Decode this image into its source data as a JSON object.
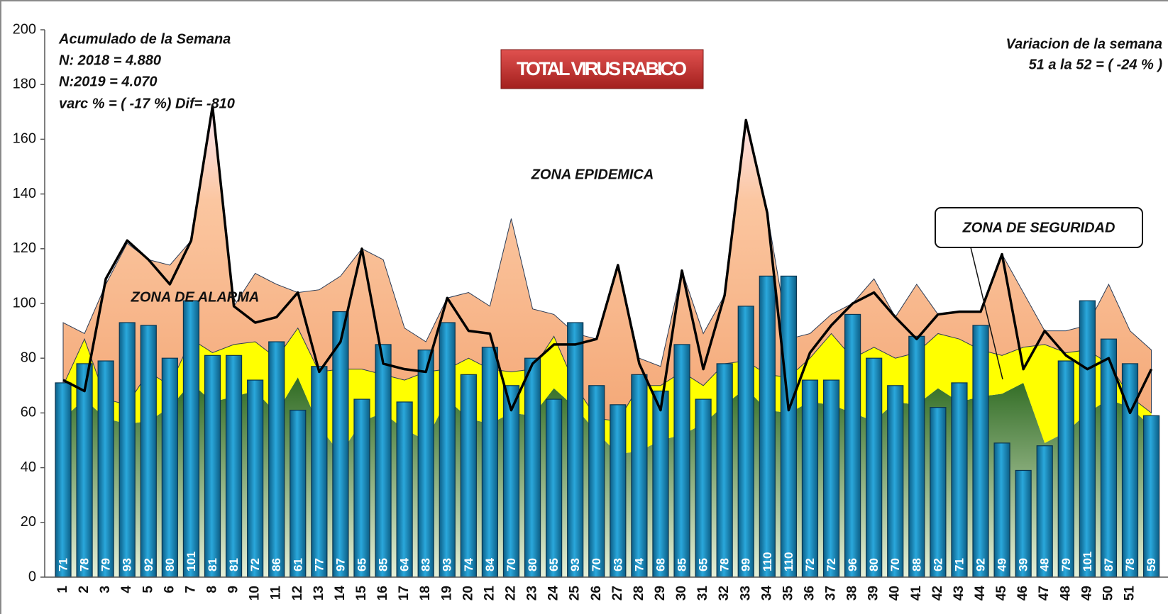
{
  "chart_data": {
    "type": "bar_line_area",
    "title": "TOTAL VIRUS RABICO",
    "annotations": [
      "Acumulado  de la  Semana",
      "N: 2018 = 4.880",
      "N:2019 = 4.070",
      "varc % = ( -17 %) Dif= -810",
      "Variacion de la semana",
      "51  a la  52  = ( -24 % )",
      "ZONA  EPIDEMICA",
      "ZONA  DE ALARMA",
      "ZONA  DE SEGURIDAD"
    ],
    "categories": [
      "1",
      "2",
      "3",
      "4",
      "5",
      "6",
      "7",
      "8",
      "9",
      "10",
      "11",
      "12",
      "13",
      "14",
      "15",
      "16",
      "17",
      "18",
      "19",
      "20",
      "21",
      "22",
      "23",
      "24",
      "25",
      "26",
      "27",
      "28",
      "29",
      "30",
      "31",
      "32",
      "33",
      "34",
      "35",
      "36",
      "37",
      "38",
      "39",
      "40",
      "41",
      "42",
      "43",
      "44",
      "45",
      "46",
      "47",
      "48",
      "49",
      "50",
      "51",
      null
    ],
    "areas": [
      {
        "color": "#3d7a2a",
        "values": [
          58,
          65,
          58,
          56,
          57,
          62,
          71,
          64,
          66,
          68,
          60,
          73,
          55,
          45,
          57,
          60,
          54,
          50,
          65,
          58,
          56,
          60,
          59,
          69,
          62,
          53,
          45,
          46,
          50,
          52,
          56,
          63,
          69,
          61,
          60,
          64,
          63,
          60,
          57,
          64,
          63,
          69,
          64,
          66,
          67,
          71,
          49,
          53,
          60,
          65,
          62,
          55
        ]
      },
      {
        "color": "#ffff00",
        "values": [
          12,
          22,
          7,
          7,
          18,
          8,
          16,
          18,
          19,
          18,
          20,
          18,
          20,
          31,
          19,
          14,
          18,
          25,
          11,
          22,
          20,
          15,
          17,
          19,
          8,
          5,
          12,
          24,
          20,
          23,
          14,
          15,
          10,
          13,
          13,
          16,
          26,
          20,
          27,
          16,
          19,
          20,
          23,
          17,
          14,
          13,
          36,
          29,
          23,
          13,
          4,
          5
        ]
      },
      {
        "color": "#f7b27a",
        "values": [
          23,
          2,
          42,
          59,
          41,
          44,
          36,
          90,
          14,
          25,
          27,
          13,
          30,
          34,
          44,
          42,
          19,
          11,
          26,
          24,
          23,
          56,
          22,
          8,
          19,
          29,
          57,
          10,
          7,
          37,
          19,
          25,
          88,
          59,
          14,
          9,
          7,
          20,
          25,
          15,
          25,
          7,
          10,
          14,
          37,
          20,
          5,
          8,
          9,
          29,
          24,
          23
        ]
      }
    ],
    "bars": {
      "color": "#1b8fc0",
      "values": [
        71,
        78,
        79,
        93,
        92,
        80,
        101,
        81,
        81,
        72,
        86,
        61,
        77,
        97,
        65,
        85,
        64,
        83,
        93,
        74,
        84,
        70,
        80,
        65,
        93,
        70,
        63,
        74,
        68,
        85,
        65,
        78,
        99,
        110,
        110,
        72,
        72,
        96,
        80,
        70,
        88,
        62,
        71,
        92,
        49,
        39,
        48,
        79,
        101,
        87,
        78,
        59
      ]
    },
    "line": {
      "color": "#000000",
      "values": [
        72,
        68,
        109,
        123,
        116,
        107,
        123,
        172,
        99,
        93,
        95,
        104,
        75,
        86,
        120,
        78,
        76,
        75,
        102,
        90,
        89,
        61,
        78,
        85,
        85,
        87,
        114,
        78,
        61,
        112,
        76,
        103,
        167,
        133,
        61,
        82,
        92,
        100,
        104,
        95,
        87,
        96,
        97,
        97,
        118,
        76,
        90,
        81,
        76,
        80,
        60,
        76
      ]
    },
    "ylim": [
      0,
      200
    ],
    "yticks": [
      0,
      20,
      40,
      60,
      80,
      100,
      120,
      140,
      160,
      180,
      200
    ]
  }
}
